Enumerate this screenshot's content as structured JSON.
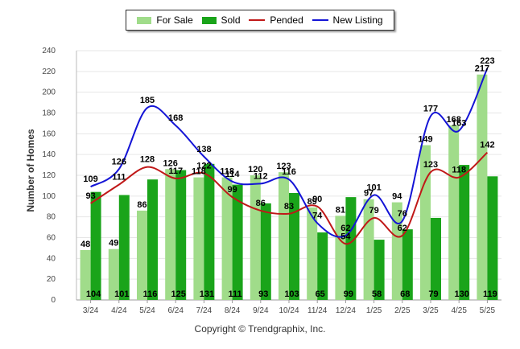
{
  "chart_data": {
    "type": "bar",
    "ylabel": "Number of Homes",
    "xlabel": "",
    "ylim": [
      0,
      240
    ],
    "yticks": [
      0,
      20,
      40,
      60,
      80,
      100,
      120,
      140,
      160,
      180,
      200,
      220,
      240
    ],
    "grid": true,
    "legend_position": "top-center",
    "categories": [
      "3/24",
      "4/24",
      "5/24",
      "6/24",
      "7/24",
      "8/24",
      "9/24",
      "10/24",
      "11/24",
      "12/24",
      "1/25",
      "2/25",
      "3/25",
      "4/25",
      "5/25"
    ],
    "series": [
      {
        "name": "For Sale",
        "kind": "bar",
        "color": "#a0dc8a",
        "values": [
          48,
          49,
          86,
          126,
          118,
          118,
          120,
          123,
          89,
          81,
          97,
          94,
          149,
          168,
          217
        ]
      },
      {
        "name": "Sold",
        "kind": "bar",
        "color": "#1aa41a",
        "values": [
          104,
          101,
          116,
          125,
          131,
          111,
          93,
          103,
          65,
          99,
          58,
          68,
          79,
          130,
          119
        ]
      },
      {
        "name": "Pended",
        "kind": "line",
        "color": "#c01818",
        "values": [
          93,
          111,
          128,
          117,
          122,
          99,
          86,
          83,
          90,
          54,
          79,
          62,
          123,
          118,
          142
        ]
      },
      {
        "name": "New Listing",
        "kind": "line",
        "color": "#1414d6",
        "values": [
          109,
          126,
          185,
          168,
          138,
          114,
          112,
          116,
          74,
          62,
          101,
          76,
          177,
          163,
          223
        ]
      }
    ]
  },
  "footer": {
    "copyright": "Copyright © Trendgraphix, Inc."
  }
}
